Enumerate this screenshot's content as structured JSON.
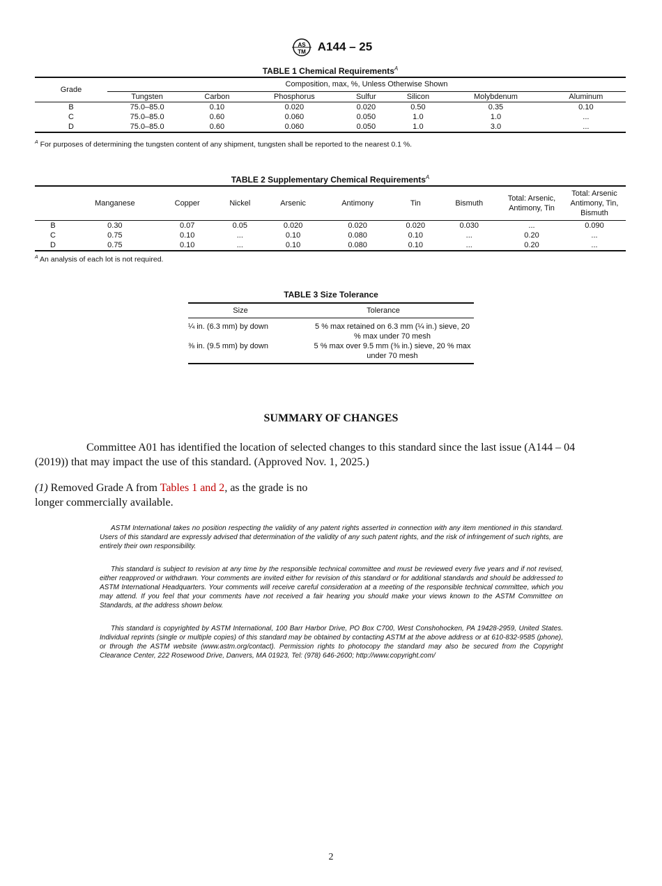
{
  "header": {
    "designation": "A144 – 25",
    "logo_text": "ASTM"
  },
  "table1": {
    "title": "TABLE 1 Chemical Requirements",
    "title_note": "A",
    "grade_header": "Grade",
    "group_header": "Composition, max, %, Unless Otherwise Shown",
    "columns": [
      "Tungsten",
      "Carbon",
      "Phosphorus",
      "Sulfur",
      "Silicon",
      "Molybdenum",
      "Aluminum"
    ],
    "rows": [
      [
        "B",
        "75.0–85.0",
        "0.10",
        "0.020",
        "0.020",
        "0.50",
        "0.35",
        "0.10"
      ],
      [
        "C",
        "75.0–85.0",
        "0.60",
        "0.060",
        "0.050",
        "1.0",
        "1.0",
        "..."
      ],
      [
        "D",
        "75.0–85.0",
        "0.60",
        "0.060",
        "0.050",
        "1.0",
        "3.0",
        "..."
      ]
    ],
    "footnote_mark": "A",
    "footnote": "For purposes of determining the tungsten content of any shipment, tungsten shall be reported to the nearest 0.1 %."
  },
  "table2": {
    "title": "TABLE 2 Supplementary Chemical Requirements",
    "title_note": "A",
    "columns": [
      "",
      "Manganese",
      "Copper",
      "Nickel",
      "Arsenic",
      "Antimony",
      "Tin",
      "Bismuth",
      "Total: Arsenic, Antimony, Tin",
      "Total: Arsenic Antimony, Tin, Bismuth"
    ],
    "rows": [
      [
        "B",
        "0.30",
        "0.07",
        "0.05",
        "0.020",
        "0.020",
        "0.020",
        "0.030",
        "...",
        "0.090"
      ],
      [
        "C",
        "0.75",
        "0.10",
        "...",
        "0.10",
        "0.080",
        "0.10",
        "...",
        "0.20",
        "..."
      ],
      [
        "D",
        "0.75",
        "0.10",
        "...",
        "0.10",
        "0.080",
        "0.10",
        "...",
        "0.20",
        "..."
      ]
    ],
    "footnote_mark": "A",
    "footnote": "An analysis of each lot is not required."
  },
  "table3": {
    "title": "TABLE 3 Size Tolerance",
    "columns": [
      "Size",
      "Tolerance"
    ],
    "rows": [
      [
        "¼ in. (6.3 mm) by down",
        "5 % max retained on 6.3 mm (¼ in.) sieve, 20 % max under 70 mesh"
      ],
      [
        "⅜ in. (9.5 mm) by down",
        "5 % max over 9.5 mm (⅜ in.) sieve, 20 % max under 70 mesh"
      ]
    ]
  },
  "summary": {
    "heading": "SUMMARY OF CHANGES",
    "intro": "Committee A01 has identified the location of selected changes to this standard since the last issue (A144 – 04 (2019)) that may impact the use of this standard. (Approved Nov. 1, 2025.)",
    "item_number": "(1)",
    "item_before": " Removed Grade A from ",
    "item_link": "Tables 1 and 2",
    "item_after": ", as the grade is no longer commercially available."
  },
  "legal": [
    "ASTM International takes no position respecting the validity of any patent rights asserted in connection with any item mentioned in this standard. Users of this standard are expressly advised that determination of the validity of any such patent rights, and the risk of infringement of such rights, are entirely their own responsibility.",
    "This standard is subject to revision at any time by the responsible technical committee and must be reviewed every five years and if not revised, either reapproved or withdrawn. Your comments are invited either for revision of this standard or for additional standards and should be addressed to ASTM International Headquarters. Your comments will receive careful consideration at a meeting of the responsible technical committee, which you may attend. If you feel that your comments have not received a fair hearing you should make your views known to the ASTM Committee on Standards, at the address shown below.",
    "This standard is copyrighted by ASTM International, 100 Barr Harbor Drive, PO Box C700, West Conshohocken, PA 19428-2959, United States. Individual reprints (single or multiple copies) of this standard may be obtained by contacting ASTM at the above address or at 610-832-9585 (phone), or through the ASTM website (www.astm.org/contact). Permission rights to photocopy the standard may also be secured from the Copyright Clearance Center, 222 Rosewood Drive, Danvers, MA 01923, Tel: (978) 646-2600; http://www.copyright.com/"
  ],
  "page_number": "2",
  "colors": {
    "link": "#c00000",
    "text": "#111111"
  }
}
